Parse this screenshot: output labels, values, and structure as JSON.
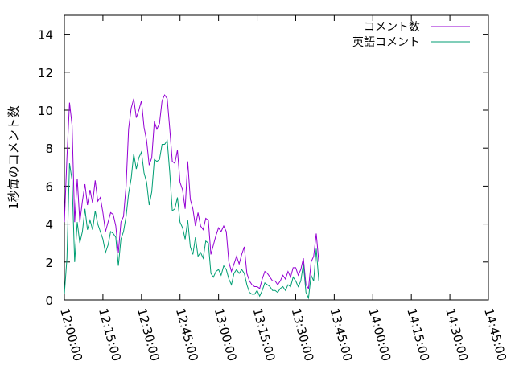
{
  "chart_data": {
    "type": "line",
    "title": "",
    "xlabel": "",
    "ylabel": "1秒毎のコメント数",
    "xlim": [
      "12:00:00",
      "14:45:00"
    ],
    "ylim": [
      0,
      15
    ],
    "x_ticks": [
      "12:00:00",
      "12:15:00",
      "12:30:00",
      "12:45:00",
      "13:00:00",
      "13:15:00",
      "13:30:00",
      "13:45:00",
      "14:00:00",
      "14:15:00",
      "14:30:00",
      "14:45:00"
    ],
    "y_ticks": [
      0,
      2,
      4,
      6,
      8,
      10,
      12,
      14
    ],
    "grid": false,
    "legend_position": "top-right",
    "series": [
      {
        "name": "コメント数",
        "color": "#9400d3",
        "points": [
          [
            "12:00:00",
            4.1
          ],
          [
            "12:01:00",
            7.5
          ],
          [
            "12:02:00",
            10.4
          ],
          [
            "12:03:00",
            9.2
          ],
          [
            "12:04:00",
            4.1
          ],
          [
            "12:05:00",
            6.4
          ],
          [
            "12:06:00",
            4.1
          ],
          [
            "12:07:00",
            5.2
          ],
          [
            "12:08:00",
            6.1
          ],
          [
            "12:09:00",
            5.0
          ],
          [
            "12:10:00",
            5.8
          ],
          [
            "12:11:00",
            5.1
          ],
          [
            "12:12:00",
            6.3
          ],
          [
            "12:13:00",
            5.2
          ],
          [
            "12:14:00",
            5.4
          ],
          [
            "12:15:00",
            4.6
          ],
          [
            "12:16:00",
            3.6
          ],
          [
            "12:17:00",
            4.1
          ],
          [
            "12:18:00",
            4.6
          ],
          [
            "12:19:00",
            4.5
          ],
          [
            "12:20:00",
            3.9
          ],
          [
            "12:21:00",
            2.5
          ],
          [
            "12:22:00",
            4.1
          ],
          [
            "12:23:00",
            4.4
          ],
          [
            "12:24:00",
            6.0
          ],
          [
            "12:25:00",
            9.0
          ],
          [
            "12:26:00",
            10.1
          ],
          [
            "12:27:00",
            10.6
          ],
          [
            "12:28:00",
            9.6
          ],
          [
            "12:29:00",
            10.0
          ],
          [
            "12:30:00",
            10.5
          ],
          [
            "12:31:00",
            9.1
          ],
          [
            "12:32:00",
            8.4
          ],
          [
            "12:33:00",
            7.1
          ],
          [
            "12:34:00",
            7.5
          ],
          [
            "12:35:00",
            9.4
          ],
          [
            "12:36:00",
            9.0
          ],
          [
            "12:37:00",
            9.3
          ],
          [
            "12:38:00",
            10.5
          ],
          [
            "12:39:00",
            10.8
          ],
          [
            "12:40:00",
            10.6
          ],
          [
            "12:41:00",
            9.0
          ],
          [
            "12:42:00",
            7.3
          ],
          [
            "12:43:00",
            7.2
          ],
          [
            "12:44:00",
            7.9
          ],
          [
            "12:45:00",
            6.2
          ],
          [
            "12:46:00",
            5.8
          ],
          [
            "12:47:00",
            4.8
          ],
          [
            "12:48:00",
            7.3
          ],
          [
            "12:49:00",
            5.3
          ],
          [
            "12:50:00",
            4.8
          ],
          [
            "12:51:00",
            3.9
          ],
          [
            "12:52:00",
            4.6
          ],
          [
            "12:53:00",
            3.9
          ],
          [
            "12:54:00",
            3.7
          ],
          [
            "12:55:00",
            4.3
          ],
          [
            "12:56:00",
            4.2
          ],
          [
            "12:57:00",
            2.4
          ],
          [
            "12:58:00",
            2.9
          ],
          [
            "12:59:00",
            3.4
          ],
          [
            "13:00:00",
            3.8
          ],
          [
            "13:01:00",
            3.6
          ],
          [
            "13:02:00",
            3.9
          ],
          [
            "13:03:00",
            3.6
          ],
          [
            "13:04:00",
            2.0
          ],
          [
            "13:05:00",
            1.5
          ],
          [
            "13:06:00",
            1.9
          ],
          [
            "13:07:00",
            2.3
          ],
          [
            "13:08:00",
            1.9
          ],
          [
            "13:09:00",
            2.4
          ],
          [
            "13:10:00",
            2.8
          ],
          [
            "13:11:00",
            1.4
          ],
          [
            "13:12:00",
            1.0
          ],
          [
            "13:13:00",
            0.8
          ],
          [
            "13:14:00",
            0.7
          ],
          [
            "13:15:00",
            0.7
          ],
          [
            "13:16:00",
            0.6
          ],
          [
            "13:17:00",
            1.1
          ],
          [
            "13:18:00",
            1.5
          ],
          [
            "13:19:00",
            1.4
          ],
          [
            "13:20:00",
            1.2
          ],
          [
            "13:21:00",
            1.0
          ],
          [
            "13:22:00",
            1.0
          ],
          [
            "13:23:00",
            0.8
          ],
          [
            "13:24:00",
            1.0
          ],
          [
            "13:25:00",
            1.3
          ],
          [
            "13:26:00",
            1.1
          ],
          [
            "13:27:00",
            1.5
          ],
          [
            "13:28:00",
            1.2
          ],
          [
            "13:29:00",
            1.7
          ],
          [
            "13:30:00",
            1.7
          ],
          [
            "13:31:00",
            1.3
          ],
          [
            "13:32:00",
            1.6
          ],
          [
            "13:33:00",
            2.2
          ],
          [
            "13:34:00",
            0.8
          ],
          [
            "13:35:00",
            0.6
          ],
          [
            "13:36:00",
            2.0
          ],
          [
            "13:37:00",
            2.3
          ],
          [
            "13:38:00",
            3.5
          ],
          [
            "13:39:00",
            2.0
          ]
        ]
      },
      {
        "name": "英語コメント",
        "color": "#009e73",
        "points": [
          [
            "12:00:00",
            0.3
          ],
          [
            "12:01:00",
            2.2
          ],
          [
            "12:02:00",
            7.2
          ],
          [
            "12:03:00",
            6.3
          ],
          [
            "12:04:00",
            2.0
          ],
          [
            "12:05:00",
            4.1
          ],
          [
            "12:06:00",
            3.0
          ],
          [
            "12:07:00",
            3.6
          ],
          [
            "12:08:00",
            4.8
          ],
          [
            "12:09:00",
            3.7
          ],
          [
            "12:10:00",
            4.2
          ],
          [
            "12:11:00",
            3.7
          ],
          [
            "12:12:00",
            4.7
          ],
          [
            "12:13:00",
            4.0
          ],
          [
            "12:14:00",
            3.6
          ],
          [
            "12:15:00",
            3.2
          ],
          [
            "12:16:00",
            2.5
          ],
          [
            "12:17:00",
            2.9
          ],
          [
            "12:18:00",
            3.6
          ],
          [
            "12:19:00",
            3.5
          ],
          [
            "12:20:00",
            3.3
          ],
          [
            "12:21:00",
            1.8
          ],
          [
            "12:22:00",
            3.2
          ],
          [
            "12:23:00",
            3.6
          ],
          [
            "12:24:00",
            4.4
          ],
          [
            "12:25:00",
            5.6
          ],
          [
            "12:26:00",
            6.4
          ],
          [
            "12:27:00",
            7.7
          ],
          [
            "12:28:00",
            6.9
          ],
          [
            "12:29:00",
            7.5
          ],
          [
            "12:30:00",
            7.8
          ],
          [
            "12:31:00",
            6.7
          ],
          [
            "12:32:00",
            6.2
          ],
          [
            "12:33:00",
            5.0
          ],
          [
            "12:34:00",
            5.7
          ],
          [
            "12:35:00",
            7.4
          ],
          [
            "12:36:00",
            7.3
          ],
          [
            "12:37:00",
            7.4
          ],
          [
            "12:38:00",
            8.2
          ],
          [
            "12:39:00",
            8.2
          ],
          [
            "12:40:00",
            8.4
          ],
          [
            "12:41:00",
            6.7
          ],
          [
            "12:42:00",
            4.7
          ],
          [
            "12:43:00",
            4.8
          ],
          [
            "12:44:00",
            5.4
          ],
          [
            "12:45:00",
            4.1
          ],
          [
            "12:46:00",
            3.8
          ],
          [
            "12:47:00",
            3.2
          ],
          [
            "12:48:00",
            4.2
          ],
          [
            "12:49:00",
            2.8
          ],
          [
            "12:50:00",
            2.4
          ],
          [
            "12:51:00",
            3.3
          ],
          [
            "12:52:00",
            2.3
          ],
          [
            "12:53:00",
            2.5
          ],
          [
            "12:54:00",
            2.2
          ],
          [
            "12:55:00",
            3.1
          ],
          [
            "12:56:00",
            3.0
          ],
          [
            "12:57:00",
            1.4
          ],
          [
            "12:58:00",
            1.2
          ],
          [
            "12:59:00",
            1.5
          ],
          [
            "13:00:00",
            1.6
          ],
          [
            "13:01:00",
            1.3
          ],
          [
            "13:02:00",
            1.8
          ],
          [
            "13:03:00",
            1.6
          ],
          [
            "13:04:00",
            1.1
          ],
          [
            "13:05:00",
            0.8
          ],
          [
            "13:06:00",
            1.4
          ],
          [
            "13:07:00",
            1.6
          ],
          [
            "13:08:00",
            1.4
          ],
          [
            "13:09:00",
            1.6
          ],
          [
            "13:10:00",
            1.4
          ],
          [
            "13:11:00",
            0.8
          ],
          [
            "13:12:00",
            0.4
          ],
          [
            "13:13:00",
            0.3
          ],
          [
            "13:14:00",
            0.3
          ],
          [
            "13:15:00",
            0.5
          ],
          [
            "13:16:00",
            0.2
          ],
          [
            "13:17:00",
            0.5
          ],
          [
            "13:18:00",
            0.9
          ],
          [
            "13:19:00",
            0.8
          ],
          [
            "13:20:00",
            0.7
          ],
          [
            "13:21:00",
            0.5
          ],
          [
            "13:22:00",
            0.5
          ],
          [
            "13:23:00",
            0.4
          ],
          [
            "13:24:00",
            0.6
          ],
          [
            "13:25:00",
            0.7
          ],
          [
            "13:26:00",
            0.5
          ],
          [
            "13:27:00",
            0.8
          ],
          [
            "13:28:00",
            0.7
          ],
          [
            "13:29:00",
            1.2
          ],
          [
            "13:30:00",
            1.0
          ],
          [
            "13:31:00",
            0.7
          ],
          [
            "13:32:00",
            1.0
          ],
          [
            "13:33:00",
            1.9
          ],
          [
            "13:34:00",
            0.4
          ],
          [
            "13:35:00",
            0.1
          ],
          [
            "13:36:00",
            1.3
          ],
          [
            "13:37:00",
            1.0
          ],
          [
            "13:38:00",
            2.7
          ],
          [
            "13:39:00",
            1.0
          ]
        ]
      }
    ]
  }
}
